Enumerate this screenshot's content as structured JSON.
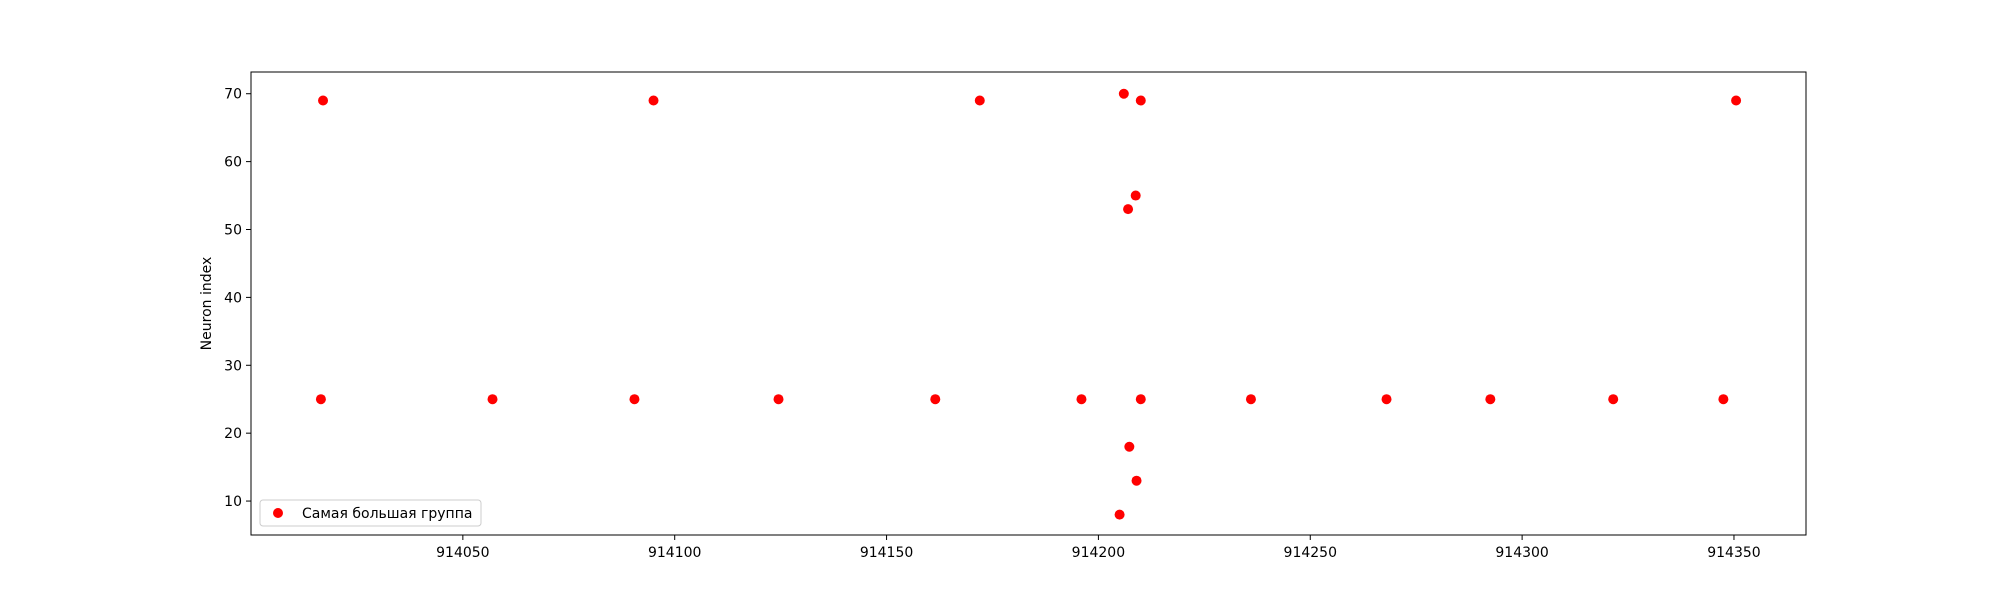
{
  "chart_data": {
    "type": "scatter",
    "title": "",
    "xlabel": "",
    "ylabel": "Neuron index",
    "xlim": [
      914000,
      914367
    ],
    "ylim": [
      5,
      73.2
    ],
    "x_ticks": [
      914050,
      914100,
      914150,
      914200,
      914250,
      914300,
      914350
    ],
    "y_ticks": [
      10,
      20,
      30,
      40,
      50,
      60,
      70
    ],
    "x_tick_labels": [
      "914050",
      "914100",
      "914150",
      "914200",
      "914250",
      "914300",
      "914350"
    ],
    "y_tick_labels": [
      "10",
      "20",
      "30",
      "40",
      "50",
      "60",
      "70"
    ],
    "grid": false,
    "legend_position": "lower-left",
    "series": [
      {
        "name": "Самая большая группа",
        "color": "#ff0000",
        "points": [
          {
            "x": 914017,
            "y": 69
          },
          {
            "x": 914016.5,
            "y": 25
          },
          {
            "x": 914057,
            "y": 25
          },
          {
            "x": 914090.5,
            "y": 25
          },
          {
            "x": 914095,
            "y": 69
          },
          {
            "x": 914124.5,
            "y": 25
          },
          {
            "x": 914161.5,
            "y": 25
          },
          {
            "x": 914172,
            "y": 69
          },
          {
            "x": 914196,
            "y": 25
          },
          {
            "x": 914205,
            "y": 8
          },
          {
            "x": 914206,
            "y": 70
          },
          {
            "x": 914207,
            "y": 53
          },
          {
            "x": 914207.3,
            "y": 18
          },
          {
            "x": 914208.8,
            "y": 55
          },
          {
            "x": 914209,
            "y": 13
          },
          {
            "x": 914210,
            "y": 69
          },
          {
            "x": 914210,
            "y": 25
          },
          {
            "x": 914236,
            "y": 25
          },
          {
            "x": 914268,
            "y": 25
          },
          {
            "x": 914292.5,
            "y": 25
          },
          {
            "x": 914321.5,
            "y": 25
          },
          {
            "x": 914347.5,
            "y": 25
          },
          {
            "x": 914350.5,
            "y": 69
          }
        ]
      }
    ]
  }
}
